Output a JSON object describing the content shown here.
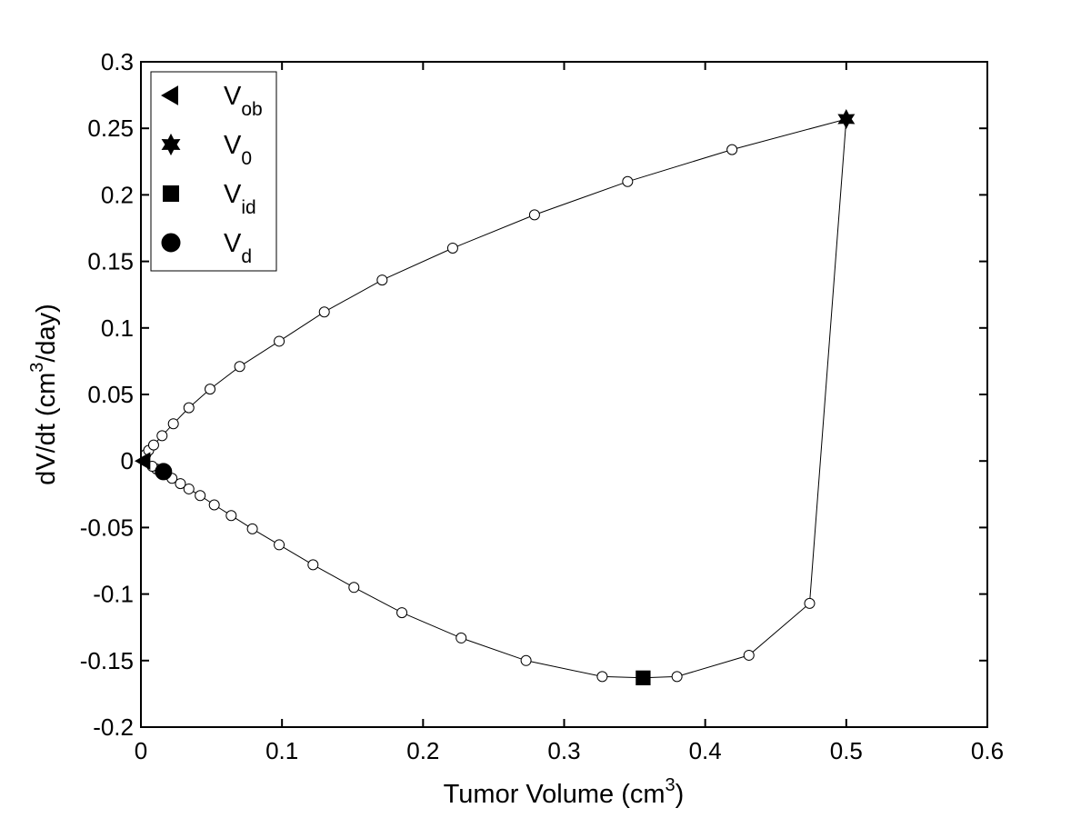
{
  "chart_data": {
    "type": "line",
    "title": "",
    "xlabel": "Tumor Volume (cm",
    "xlabel_sup": "3",
    "xlabel_end": ")",
    "ylabel": "dV/dt (cm",
    "ylabel_sup": "3",
    "ylabel_end": "/day)",
    "xlim": [
      0,
      0.6
    ],
    "ylim": [
      -0.2,
      0.3
    ],
    "xticks": [
      0,
      0.1,
      0.2,
      0.3,
      0.4,
      0.5,
      0.6
    ],
    "xtick_labels": [
      "0",
      "0.1",
      "0.2",
      "0.3",
      "0.4",
      "0.5",
      "0.6"
    ],
    "yticks": [
      0.3,
      0.25,
      0.2,
      0.15,
      0.1,
      0.05,
      0,
      -0.05,
      -0.1,
      -0.15,
      -0.2
    ],
    "ytick_labels": [
      "0.3",
      "0.25",
      "0.2",
      "0.15",
      "0.1",
      "0.05",
      "0",
      "-0.05",
      "-0.1",
      "-0.15",
      "-0.2"
    ],
    "grid": false,
    "legend_position": "top-left",
    "colors": {
      "line": "#000000",
      "marker_fill": "#ffffff",
      "special": "#000000"
    },
    "trajectory": [
      {
        "x": 0.0,
        "y": 0.0
      },
      {
        "x": 0.0035,
        "y": 0.005
      },
      {
        "x": 0.0055,
        "y": 0.008
      },
      {
        "x": 0.009,
        "y": 0.012
      },
      {
        "x": 0.015,
        "y": 0.019
      },
      {
        "x": 0.023,
        "y": 0.028
      },
      {
        "x": 0.034,
        "y": 0.04
      },
      {
        "x": 0.049,
        "y": 0.054
      },
      {
        "x": 0.07,
        "y": 0.071
      },
      {
        "x": 0.098,
        "y": 0.09
      },
      {
        "x": 0.13,
        "y": 0.112
      },
      {
        "x": 0.171,
        "y": 0.136
      },
      {
        "x": 0.221,
        "y": 0.16
      },
      {
        "x": 0.279,
        "y": 0.185
      },
      {
        "x": 0.345,
        "y": 0.21
      },
      {
        "x": 0.419,
        "y": 0.234
      },
      {
        "x": 0.5,
        "y": 0.257
      },
      {
        "x": 0.474,
        "y": -0.107
      },
      {
        "x": 0.431,
        "y": -0.146
      },
      {
        "x": 0.38,
        "y": -0.162
      },
      {
        "x": 0.356,
        "y": -0.163
      },
      {
        "x": 0.327,
        "y": -0.162
      },
      {
        "x": 0.273,
        "y": -0.15
      },
      {
        "x": 0.227,
        "y": -0.133
      },
      {
        "x": 0.185,
        "y": -0.114
      },
      {
        "x": 0.151,
        "y": -0.095
      },
      {
        "x": 0.122,
        "y": -0.078
      },
      {
        "x": 0.098,
        "y": -0.063
      },
      {
        "x": 0.079,
        "y": -0.051
      },
      {
        "x": 0.064,
        "y": -0.041
      },
      {
        "x": 0.052,
        "y": -0.033
      },
      {
        "x": 0.042,
        "y": -0.026
      },
      {
        "x": 0.034,
        "y": -0.021
      },
      {
        "x": 0.028,
        "y": -0.017
      },
      {
        "x": 0.022,
        "y": -0.013
      },
      {
        "x": 0.016,
        "y": -0.008
      },
      {
        "x": 0.011,
        "y": -0.006
      },
      {
        "x": 0.008,
        "y": -0.004
      },
      {
        "x": 0.006,
        "y": -0.003
      },
      {
        "x": 0.004,
        "y": -0.002
      },
      {
        "x": 0.002,
        "y": -0.001
      },
      {
        "x": 0.001,
        "y": 0.0
      }
    ],
    "circle_markers": [
      {
        "x": 0.0035,
        "y": 0.005
      },
      {
        "x": 0.0055,
        "y": 0.008
      },
      {
        "x": 0.009,
        "y": 0.012
      },
      {
        "x": 0.015,
        "y": 0.019
      },
      {
        "x": 0.023,
        "y": 0.028
      },
      {
        "x": 0.034,
        "y": 0.04
      },
      {
        "x": 0.049,
        "y": 0.054
      },
      {
        "x": 0.07,
        "y": 0.071
      },
      {
        "x": 0.098,
        "y": 0.09
      },
      {
        "x": 0.13,
        "y": 0.112
      },
      {
        "x": 0.171,
        "y": 0.136
      },
      {
        "x": 0.221,
        "y": 0.16
      },
      {
        "x": 0.279,
        "y": 0.185
      },
      {
        "x": 0.345,
        "y": 0.21
      },
      {
        "x": 0.419,
        "y": 0.234
      },
      {
        "x": 0.474,
        "y": -0.107
      },
      {
        "x": 0.431,
        "y": -0.146
      },
      {
        "x": 0.38,
        "y": -0.162
      },
      {
        "x": 0.327,
        "y": -0.162
      },
      {
        "x": 0.273,
        "y": -0.15
      },
      {
        "x": 0.227,
        "y": -0.133
      },
      {
        "x": 0.185,
        "y": -0.114
      },
      {
        "x": 0.151,
        "y": -0.095
      },
      {
        "x": 0.122,
        "y": -0.078
      },
      {
        "x": 0.098,
        "y": -0.063
      },
      {
        "x": 0.079,
        "y": -0.051
      },
      {
        "x": 0.064,
        "y": -0.041
      },
      {
        "x": 0.052,
        "y": -0.033
      },
      {
        "x": 0.042,
        "y": -0.026
      },
      {
        "x": 0.034,
        "y": -0.021
      },
      {
        "x": 0.028,
        "y": -0.017
      },
      {
        "x": 0.022,
        "y": -0.013
      },
      {
        "x": 0.011,
        "y": -0.006
      },
      {
        "x": 0.008,
        "y": -0.004
      }
    ],
    "special_points": [
      {
        "key": "V_ob",
        "label": "V",
        "sub": "ob",
        "marker": "triangle-left",
        "x": 0.002,
        "y": 0.0
      },
      {
        "key": "V_0",
        "label": "V",
        "sub": "0",
        "marker": "hexagram",
        "x": 0.5,
        "y": 0.257
      },
      {
        "key": "V_id",
        "label": "V",
        "sub": "id",
        "marker": "square",
        "x": 0.356,
        "y": -0.163
      },
      {
        "key": "V_d",
        "label": "V",
        "sub": "d",
        "marker": "circle",
        "x": 0.016,
        "y": -0.008
      }
    ]
  }
}
